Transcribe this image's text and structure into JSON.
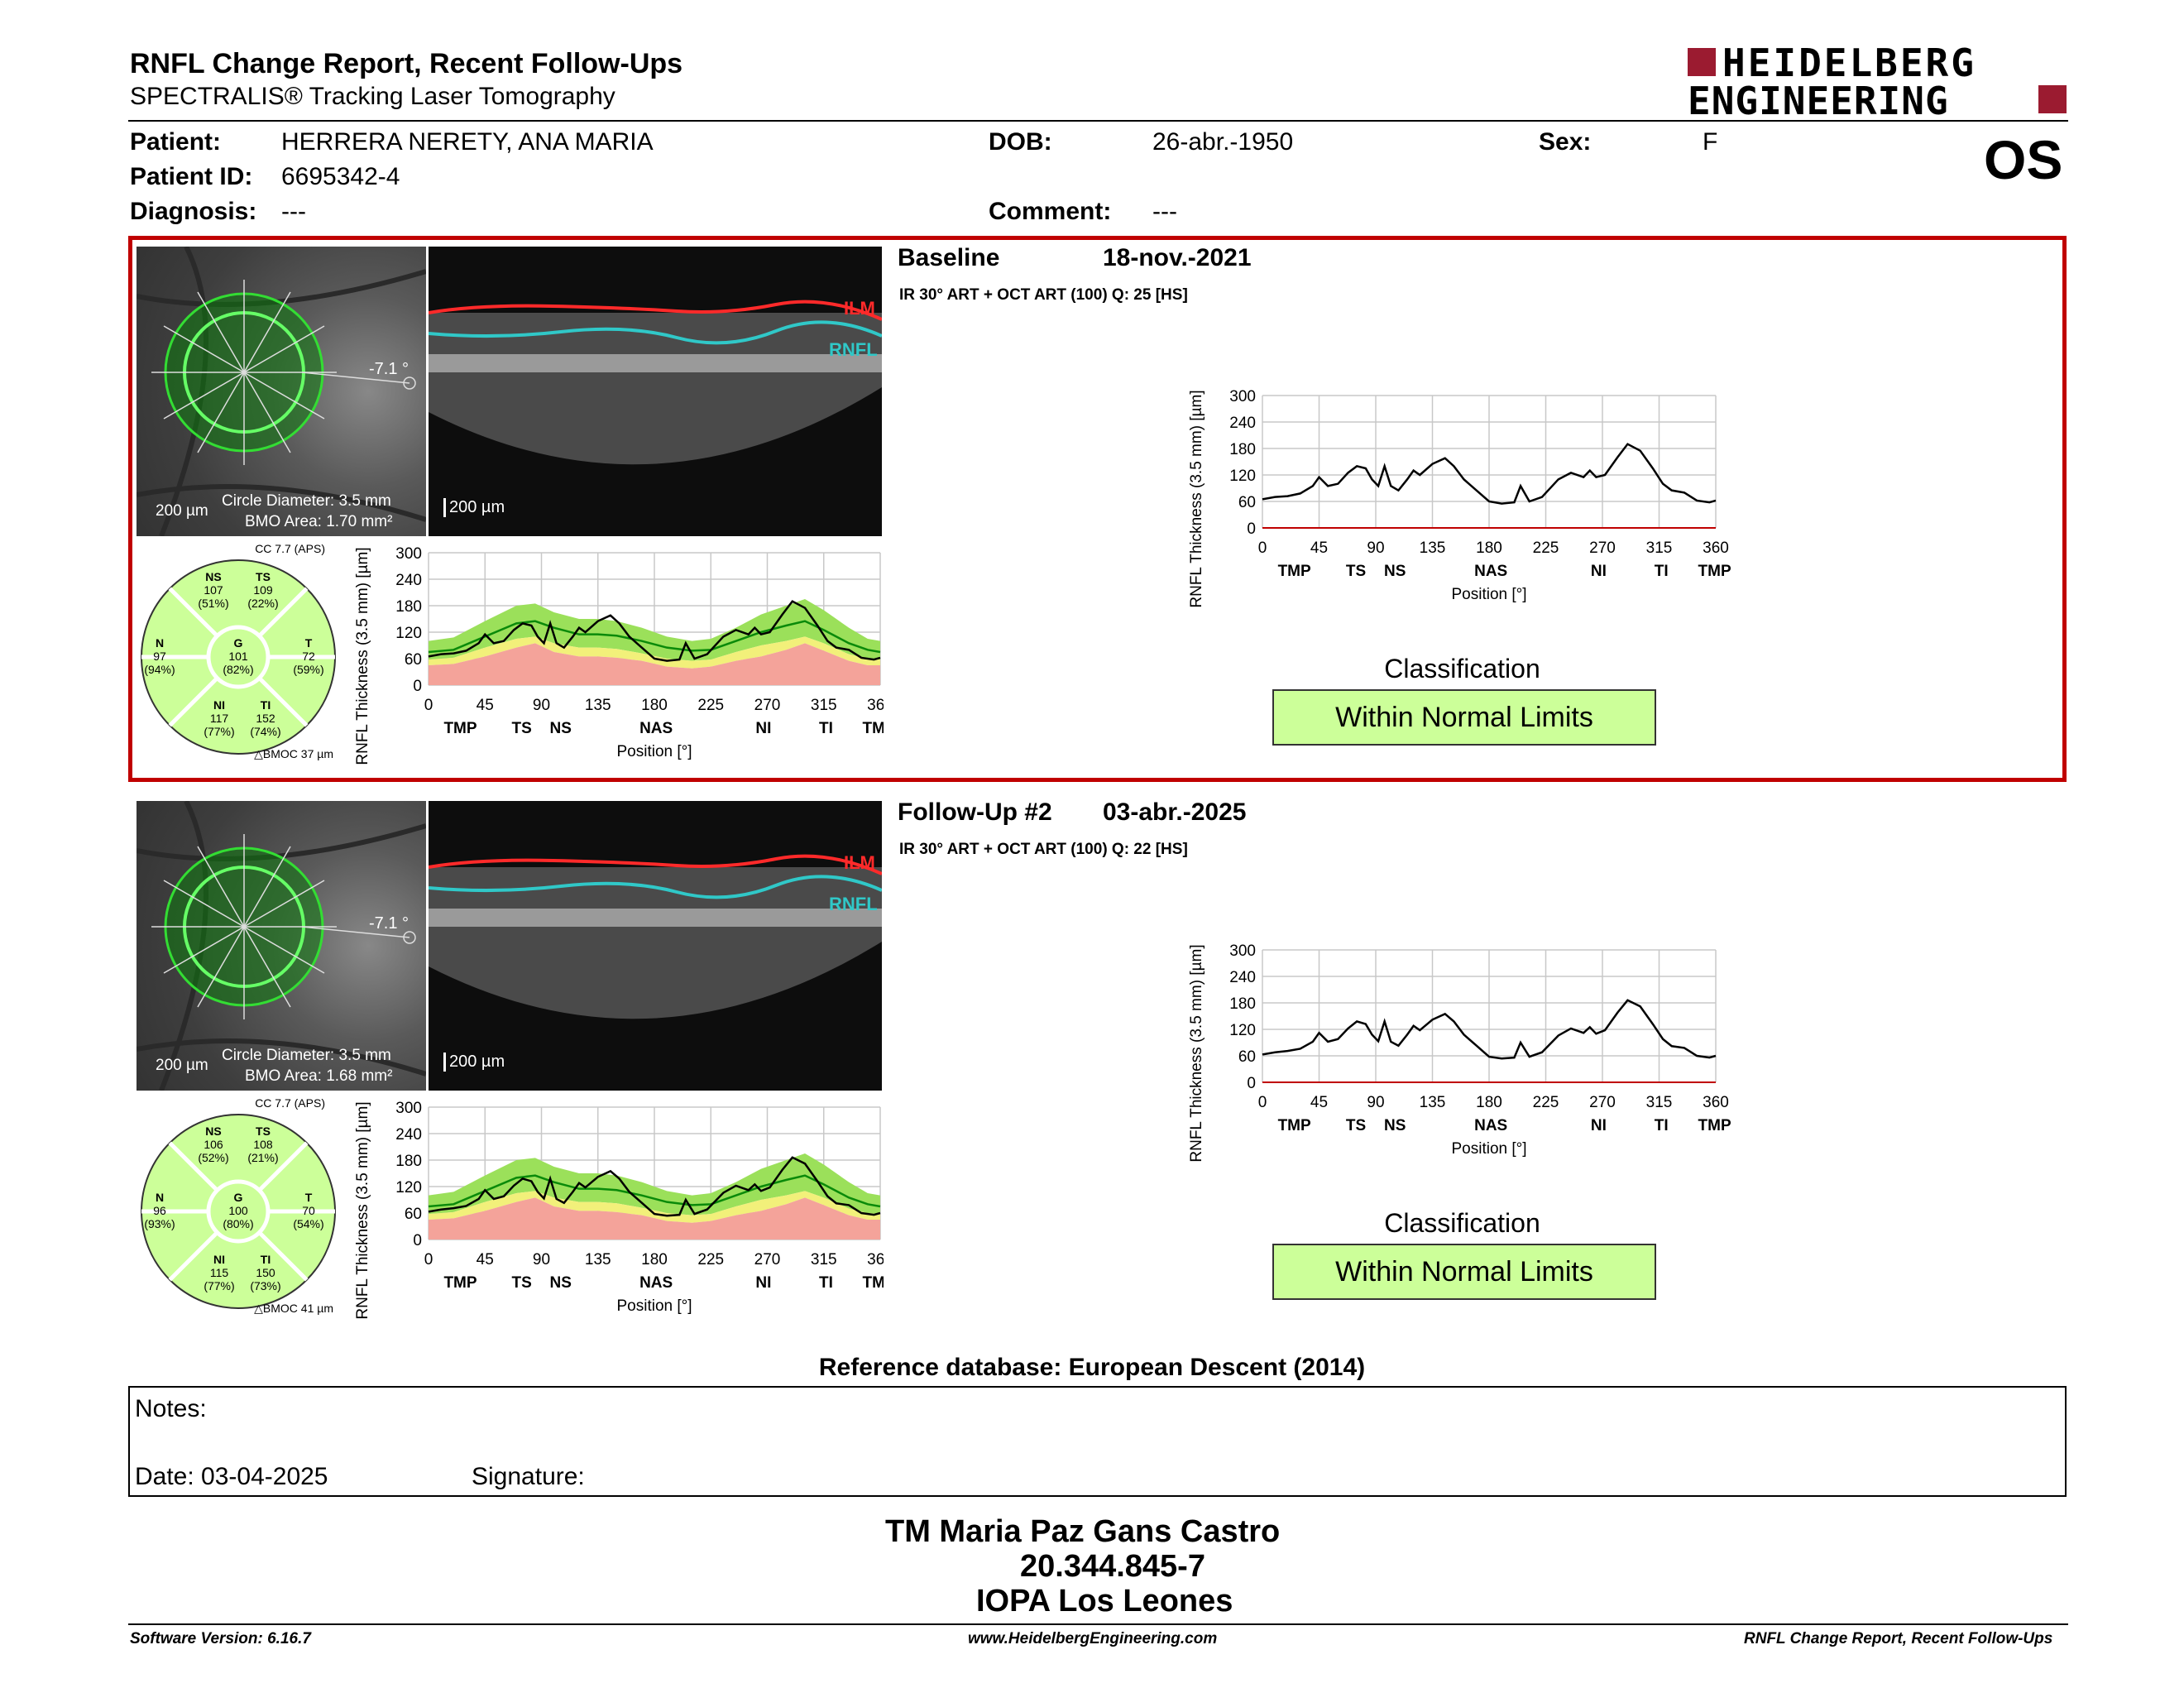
{
  "header": {
    "title": "RNFL Change Report, Recent Follow-Ups",
    "subtitle": "SPECTRALIS® Tracking Laser Tomography",
    "logo_line1": "HEIDELBERG",
    "logo_line2": "ENGINEERING",
    "eye": "OS"
  },
  "patient": {
    "patient_label": "Patient:",
    "patient_value": "HERRERA NERETY, ANA MARIA",
    "dob_label": "DOB:",
    "dob_value": "26-abr.-1950",
    "sex_label": "Sex:",
    "sex_value": "F",
    "id_label": "Patient ID:",
    "id_value": "6695342-4",
    "diagnosis_label": "Diagnosis:",
    "diagnosis_value": "---",
    "comment_label": "Comment:",
    "comment_value": "---"
  },
  "exams": [
    {
      "label": "Baseline",
      "date": "18-nov.-2021",
      "scan_info": "IR 30° ART + OCT ART (100) Q: 25 [HS]",
      "angle": "-7.1 °",
      "fundus_scale": "200 µm",
      "circle_diameter": "Circle Diameter: 3.5 mm",
      "bmo_area": "BMO Area: 1.70 mm²",
      "oct_scale": "200 µm",
      "ilm_label": "ILM",
      "rnfl_label": "RNFL",
      "cc_label": "CC 7.7 (APS)",
      "bmoc_label": "△BMOC 37 µm",
      "sectors": {
        "NS": {
          "name": "NS",
          "value": "107",
          "pct": "(51%)"
        },
        "TS": {
          "name": "TS",
          "value": "109",
          "pct": "(22%)"
        },
        "N": {
          "name": "N",
          "value": "97",
          "pct": "(94%)"
        },
        "G": {
          "name": "G",
          "value": "101",
          "pct": "(82%)"
        },
        "T": {
          "name": "T",
          "value": "72",
          "pct": "(59%)"
        },
        "NI": {
          "name": "NI",
          "value": "117",
          "pct": "(77%)"
        },
        "TI": {
          "name": "TI",
          "value": "152",
          "pct": "(74%)"
        }
      },
      "classification_label": "Classification",
      "classification": "Within Normal Limits",
      "highlight_color": "#c00000"
    },
    {
      "label": "Follow-Up #2",
      "date": "03-abr.-2025",
      "scan_info": "IR 30° ART + OCT ART (100) Q: 22 [HS]",
      "angle": "-7.1 °",
      "fundus_scale": "200 µm",
      "circle_diameter": "Circle Diameter: 3.5 mm",
      "bmo_area": "BMO Area: 1.68 mm²",
      "oct_scale": "200 µm",
      "ilm_label": "ILM",
      "rnfl_label": "RNFL",
      "cc_label": "CC 7.7 (APS)",
      "bmoc_label": "△BMOC 41 µm",
      "sectors": {
        "NS": {
          "name": "NS",
          "value": "106",
          "pct": "(52%)"
        },
        "TS": {
          "name": "TS",
          "value": "108",
          "pct": "(21%)"
        },
        "N": {
          "name": "N",
          "value": "96",
          "pct": "(93%)"
        },
        "G": {
          "name": "G",
          "value": "100",
          "pct": "(80%)"
        },
        "T": {
          "name": "T",
          "value": "70",
          "pct": "(54%)"
        },
        "NI": {
          "name": "NI",
          "value": "115",
          "pct": "(77%)"
        },
        "TI": {
          "name": "TI",
          "value": "150",
          "pct": "(73%)"
        }
      },
      "classification_label": "Classification",
      "classification": "Within Normal Limits"
    }
  ],
  "chart_data": {
    "type": "line",
    "ylabel": "RNFL Thickness (3.5 mm) [µm]",
    "xlabel": "Position [°]",
    "ylim": [
      0,
      300
    ],
    "xlim": [
      0,
      360
    ],
    "y_ticks": [
      "300",
      "240",
      "180",
      "120",
      "60",
      "0"
    ],
    "x_ticks": [
      "0",
      "45",
      "90",
      "135",
      "180",
      "225",
      "270",
      "315",
      "360"
    ],
    "sector_labels": [
      "TMP",
      "TS",
      "NS",
      "NAS",
      "NI",
      "TI",
      "TMP"
    ],
    "colors": {
      "normal": "#9be05a",
      "borderline": "#f2f07a",
      "outside": "#f4a39a",
      "mean": "#0a8a0a",
      "patient": "#000000"
    },
    "normative_mean": [
      [
        0,
        75
      ],
      [
        20,
        80
      ],
      [
        45,
        110
      ],
      [
        70,
        140
      ],
      [
        85,
        145
      ],
      [
        100,
        130
      ],
      [
        120,
        115
      ],
      [
        135,
        115
      ],
      [
        150,
        112
      ],
      [
        170,
        100
      ],
      [
        190,
        85
      ],
      [
        210,
        78
      ],
      [
        225,
        80
      ],
      [
        245,
        100
      ],
      [
        265,
        120
      ],
      [
        285,
        135
      ],
      [
        300,
        145
      ],
      [
        315,
        125
      ],
      [
        335,
        95
      ],
      [
        350,
        80
      ],
      [
        360,
        75
      ]
    ],
    "normal_band_upper": [
      [
        0,
        100
      ],
      [
        20,
        108
      ],
      [
        45,
        145
      ],
      [
        70,
        180
      ],
      [
        85,
        185
      ],
      [
        100,
        165
      ],
      [
        120,
        150
      ],
      [
        135,
        150
      ],
      [
        150,
        145
      ],
      [
        170,
        130
      ],
      [
        190,
        110
      ],
      [
        210,
        100
      ],
      [
        225,
        105
      ],
      [
        245,
        130
      ],
      [
        265,
        160
      ],
      [
        285,
        180
      ],
      [
        300,
        195
      ],
      [
        315,
        170
      ],
      [
        335,
        130
      ],
      [
        350,
        105
      ],
      [
        360,
        100
      ]
    ],
    "band_5pct": [
      [
        0,
        58
      ],
      [
        20,
        62
      ],
      [
        45,
        85
      ],
      [
        70,
        105
      ],
      [
        85,
        110
      ],
      [
        100,
        95
      ],
      [
        120,
        85
      ],
      [
        135,
        85
      ],
      [
        150,
        82
      ],
      [
        170,
        72
      ],
      [
        190,
        60
      ],
      [
        210,
        55
      ],
      [
        225,
        58
      ],
      [
        245,
        75
      ],
      [
        265,
        90
      ],
      [
        285,
        100
      ],
      [
        300,
        110
      ],
      [
        315,
        95
      ],
      [
        335,
        70
      ],
      [
        350,
        60
      ],
      [
        360,
        58
      ]
    ],
    "band_1pct": [
      [
        0,
        45
      ],
      [
        20,
        48
      ],
      [
        45,
        65
      ],
      [
        70,
        85
      ],
      [
        85,
        95
      ],
      [
        100,
        75
      ],
      [
        120,
        65
      ],
      [
        135,
        65
      ],
      [
        150,
        62
      ],
      [
        170,
        55
      ],
      [
        190,
        42
      ],
      [
        210,
        38
      ],
      [
        225,
        42
      ],
      [
        245,
        55
      ],
      [
        265,
        65
      ],
      [
        285,
        80
      ],
      [
        300,
        95
      ],
      [
        315,
        78
      ],
      [
        335,
        55
      ],
      [
        350,
        45
      ],
      [
        360,
        45
      ]
    ],
    "series": [
      {
        "values": [
          [
            0,
            65
          ],
          [
            10,
            70
          ],
          [
            20,
            72
          ],
          [
            30,
            78
          ],
          [
            40,
            95
          ],
          [
            45,
            115
          ],
          [
            52,
            95
          ],
          [
            60,
            100
          ],
          [
            68,
            125
          ],
          [
            75,
            140
          ],
          [
            82,
            135
          ],
          [
            87,
            110
          ],
          [
            92,
            95
          ],
          [
            97,
            140
          ],
          [
            102,
            95
          ],
          [
            108,
            85
          ],
          [
            115,
            110
          ],
          [
            120,
            130
          ],
          [
            125,
            120
          ],
          [
            135,
            145
          ],
          [
            145,
            158
          ],
          [
            152,
            140
          ],
          [
            160,
            110
          ],
          [
            170,
            85
          ],
          [
            180,
            60
          ],
          [
            190,
            55
          ],
          [
            200,
            58
          ],
          [
            205,
            95
          ],
          [
            212,
            60
          ],
          [
            222,
            70
          ],
          [
            235,
            110
          ],
          [
            245,
            125
          ],
          [
            255,
            115
          ],
          [
            260,
            130
          ],
          [
            265,
            115
          ],
          [
            272,
            120
          ],
          [
            282,
            160
          ],
          [
            290,
            190
          ],
          [
            300,
            175
          ],
          [
            310,
            135
          ],
          [
            318,
            100
          ],
          [
            325,
            85
          ],
          [
            335,
            80
          ],
          [
            345,
            62
          ],
          [
            355,
            58
          ],
          [
            360,
            62
          ]
        ]
      },
      {
        "values": [
          [
            0,
            63
          ],
          [
            10,
            68
          ],
          [
            20,
            71
          ],
          [
            30,
            76
          ],
          [
            40,
            92
          ],
          [
            45,
            112
          ],
          [
            52,
            92
          ],
          [
            60,
            98
          ],
          [
            68,
            122
          ],
          [
            75,
            138
          ],
          [
            82,
            132
          ],
          [
            87,
            108
          ],
          [
            92,
            93
          ],
          [
            97,
            138
          ],
          [
            102,
            92
          ],
          [
            108,
            83
          ],
          [
            115,
            108
          ],
          [
            120,
            128
          ],
          [
            125,
            118
          ],
          [
            135,
            142
          ],
          [
            145,
            155
          ],
          [
            152,
            138
          ],
          [
            160,
            108
          ],
          [
            170,
            83
          ],
          [
            180,
            58
          ],
          [
            190,
            54
          ],
          [
            200,
            56
          ],
          [
            205,
            90
          ],
          [
            212,
            58
          ],
          [
            222,
            68
          ],
          [
            235,
            106
          ],
          [
            245,
            122
          ],
          [
            255,
            112
          ],
          [
            260,
            125
          ],
          [
            265,
            110
          ],
          [
            272,
            118
          ],
          [
            282,
            158
          ],
          [
            290,
            186
          ],
          [
            300,
            172
          ],
          [
            310,
            132
          ],
          [
            318,
            98
          ],
          [
            325,
            82
          ],
          [
            335,
            78
          ],
          [
            345,
            60
          ],
          [
            355,
            56
          ],
          [
            360,
            60
          ]
        ]
      }
    ]
  },
  "footer": {
    "reference_db": "Reference database: European Descent (2014)",
    "notes_label": "Notes:",
    "date_label": "Date: 03-04-2025",
    "signature_label": "Signature:",
    "signer_name": "TM Maria Paz Gans Castro",
    "signer_id": "20.344.845-7",
    "signer_org": "IOPA Los Leones",
    "software_version": "Software Version: 6.16.7",
    "website": "www.HeidelbergEngineering.com",
    "report_name": "RNFL Change Report, Recent Follow-Ups"
  }
}
